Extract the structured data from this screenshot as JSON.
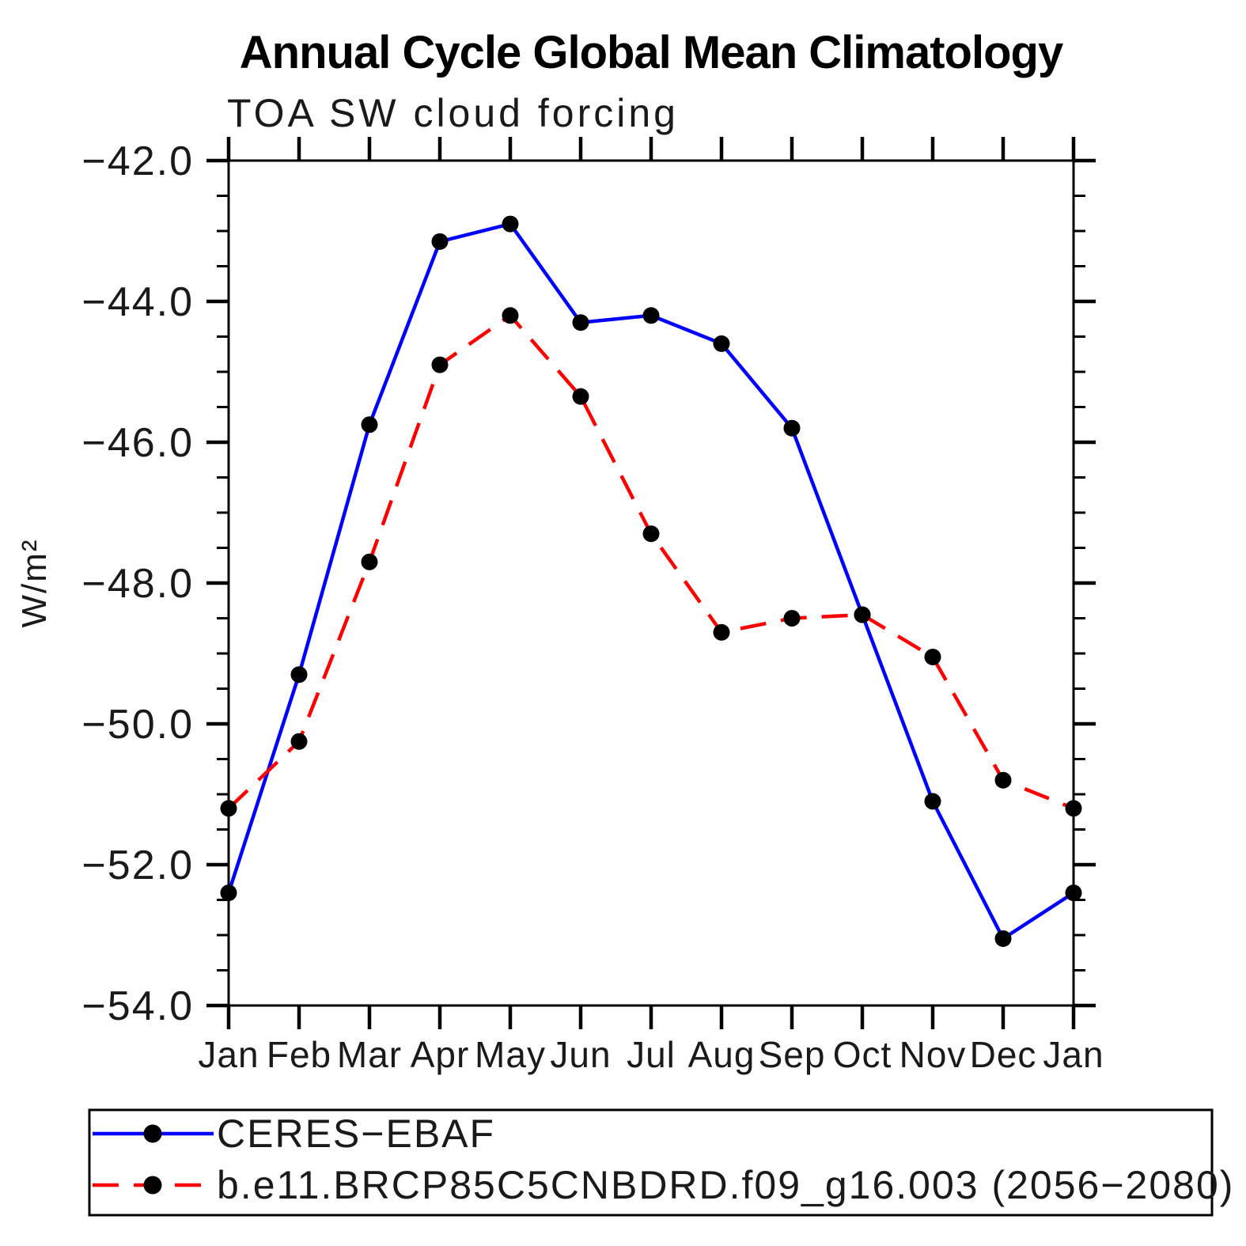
{
  "chart_data": {
    "type": "line",
    "title": "Annual Cycle Global Mean Climatology",
    "subtitle": "TOA SW cloud forcing",
    "ylabel": "W/m²",
    "x_categories": [
      "Jan",
      "Feb",
      "Mar",
      "Apr",
      "May",
      "Jun",
      "Jul",
      "Aug",
      "Sep",
      "Oct",
      "Nov",
      "Dec",
      "Jan"
    ],
    "series": [
      {
        "name": "CERES−EBAF",
        "color": "#0000ff",
        "line_style": "solid",
        "marker": "filled-circle",
        "marker_color": "#000000",
        "values": [
          -52.4,
          -49.3,
          -45.75,
          -43.15,
          -42.9,
          -44.3,
          -44.2,
          -44.6,
          -45.8,
          -48.45,
          -51.1,
          -53.05,
          -52.4
        ]
      },
      {
        "name": "b.e11.BRCP85C5CNBDRD.f09_g16.003 (2056−2080)",
        "color": "#ff0000",
        "line_style": "dashed",
        "marker": "filled-circle",
        "marker_color": "#000000",
        "values": [
          -51.2,
          -50.25,
          -47.7,
          -44.9,
          -44.2,
          -45.35,
          -47.3,
          -48.7,
          -48.5,
          -48.45,
          -49.05,
          -50.8,
          -51.2
        ]
      }
    ],
    "ylim": [
      -54.0,
      -42.0
    ],
    "y_major_ticks": [
      -42.0,
      -44.0,
      -46.0,
      -48.0,
      -50.0,
      -52.0,
      -54.0
    ],
    "y_tick_labels": [
      "−42.0",
      "−44.0",
      "−46.0",
      "−48.0",
      "−50.0",
      "−52.0",
      "−54.0"
    ],
    "y_minor_step": 0.5,
    "grid": "off",
    "axis_color": "#000000",
    "legend_position": "bottom-left-box"
  }
}
